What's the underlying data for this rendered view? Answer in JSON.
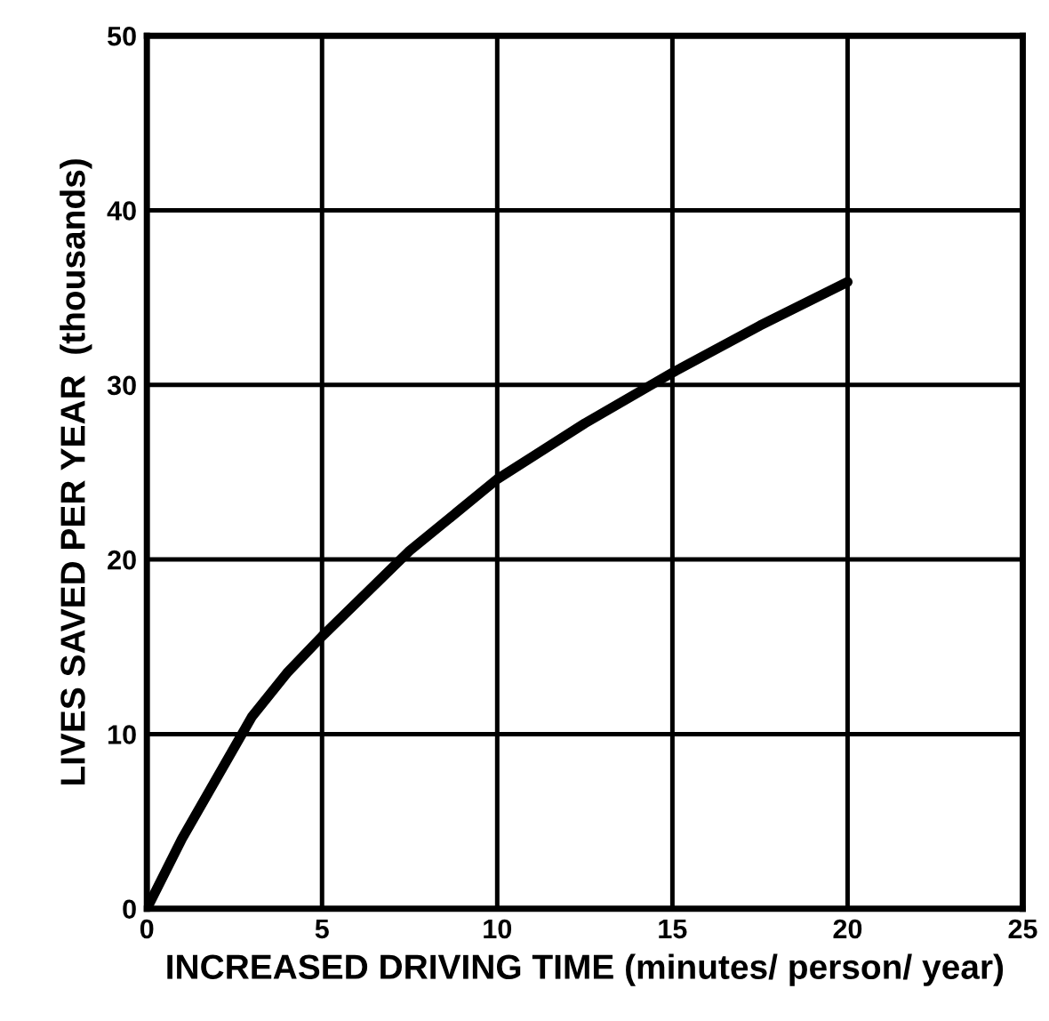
{
  "chart_data": {
    "type": "line",
    "xlabel": "INCREASED DRIVING TIME (minutes/ person/ year)",
    "ylabel": "LIVES SAVED PER YEAR  (thousands)",
    "xlim": [
      0,
      25
    ],
    "ylim": [
      0,
      50
    ],
    "xticks": [
      0,
      5,
      10,
      15,
      20,
      25
    ],
    "yticks": [
      0,
      10,
      20,
      30,
      40,
      50
    ],
    "grid": true,
    "marker": "none",
    "line_style": "solid",
    "series": [
      {
        "color": "#000000",
        "x": [
          0,
          1,
          2,
          3,
          4,
          5,
          7.5,
          10,
          12.5,
          15,
          17.5,
          20
        ],
        "values": [
          0,
          4,
          7.5,
          11,
          13.5,
          15.6,
          20.5,
          24.6,
          27.8,
          30.7,
          33.4,
          35.9
        ]
      }
    ]
  }
}
